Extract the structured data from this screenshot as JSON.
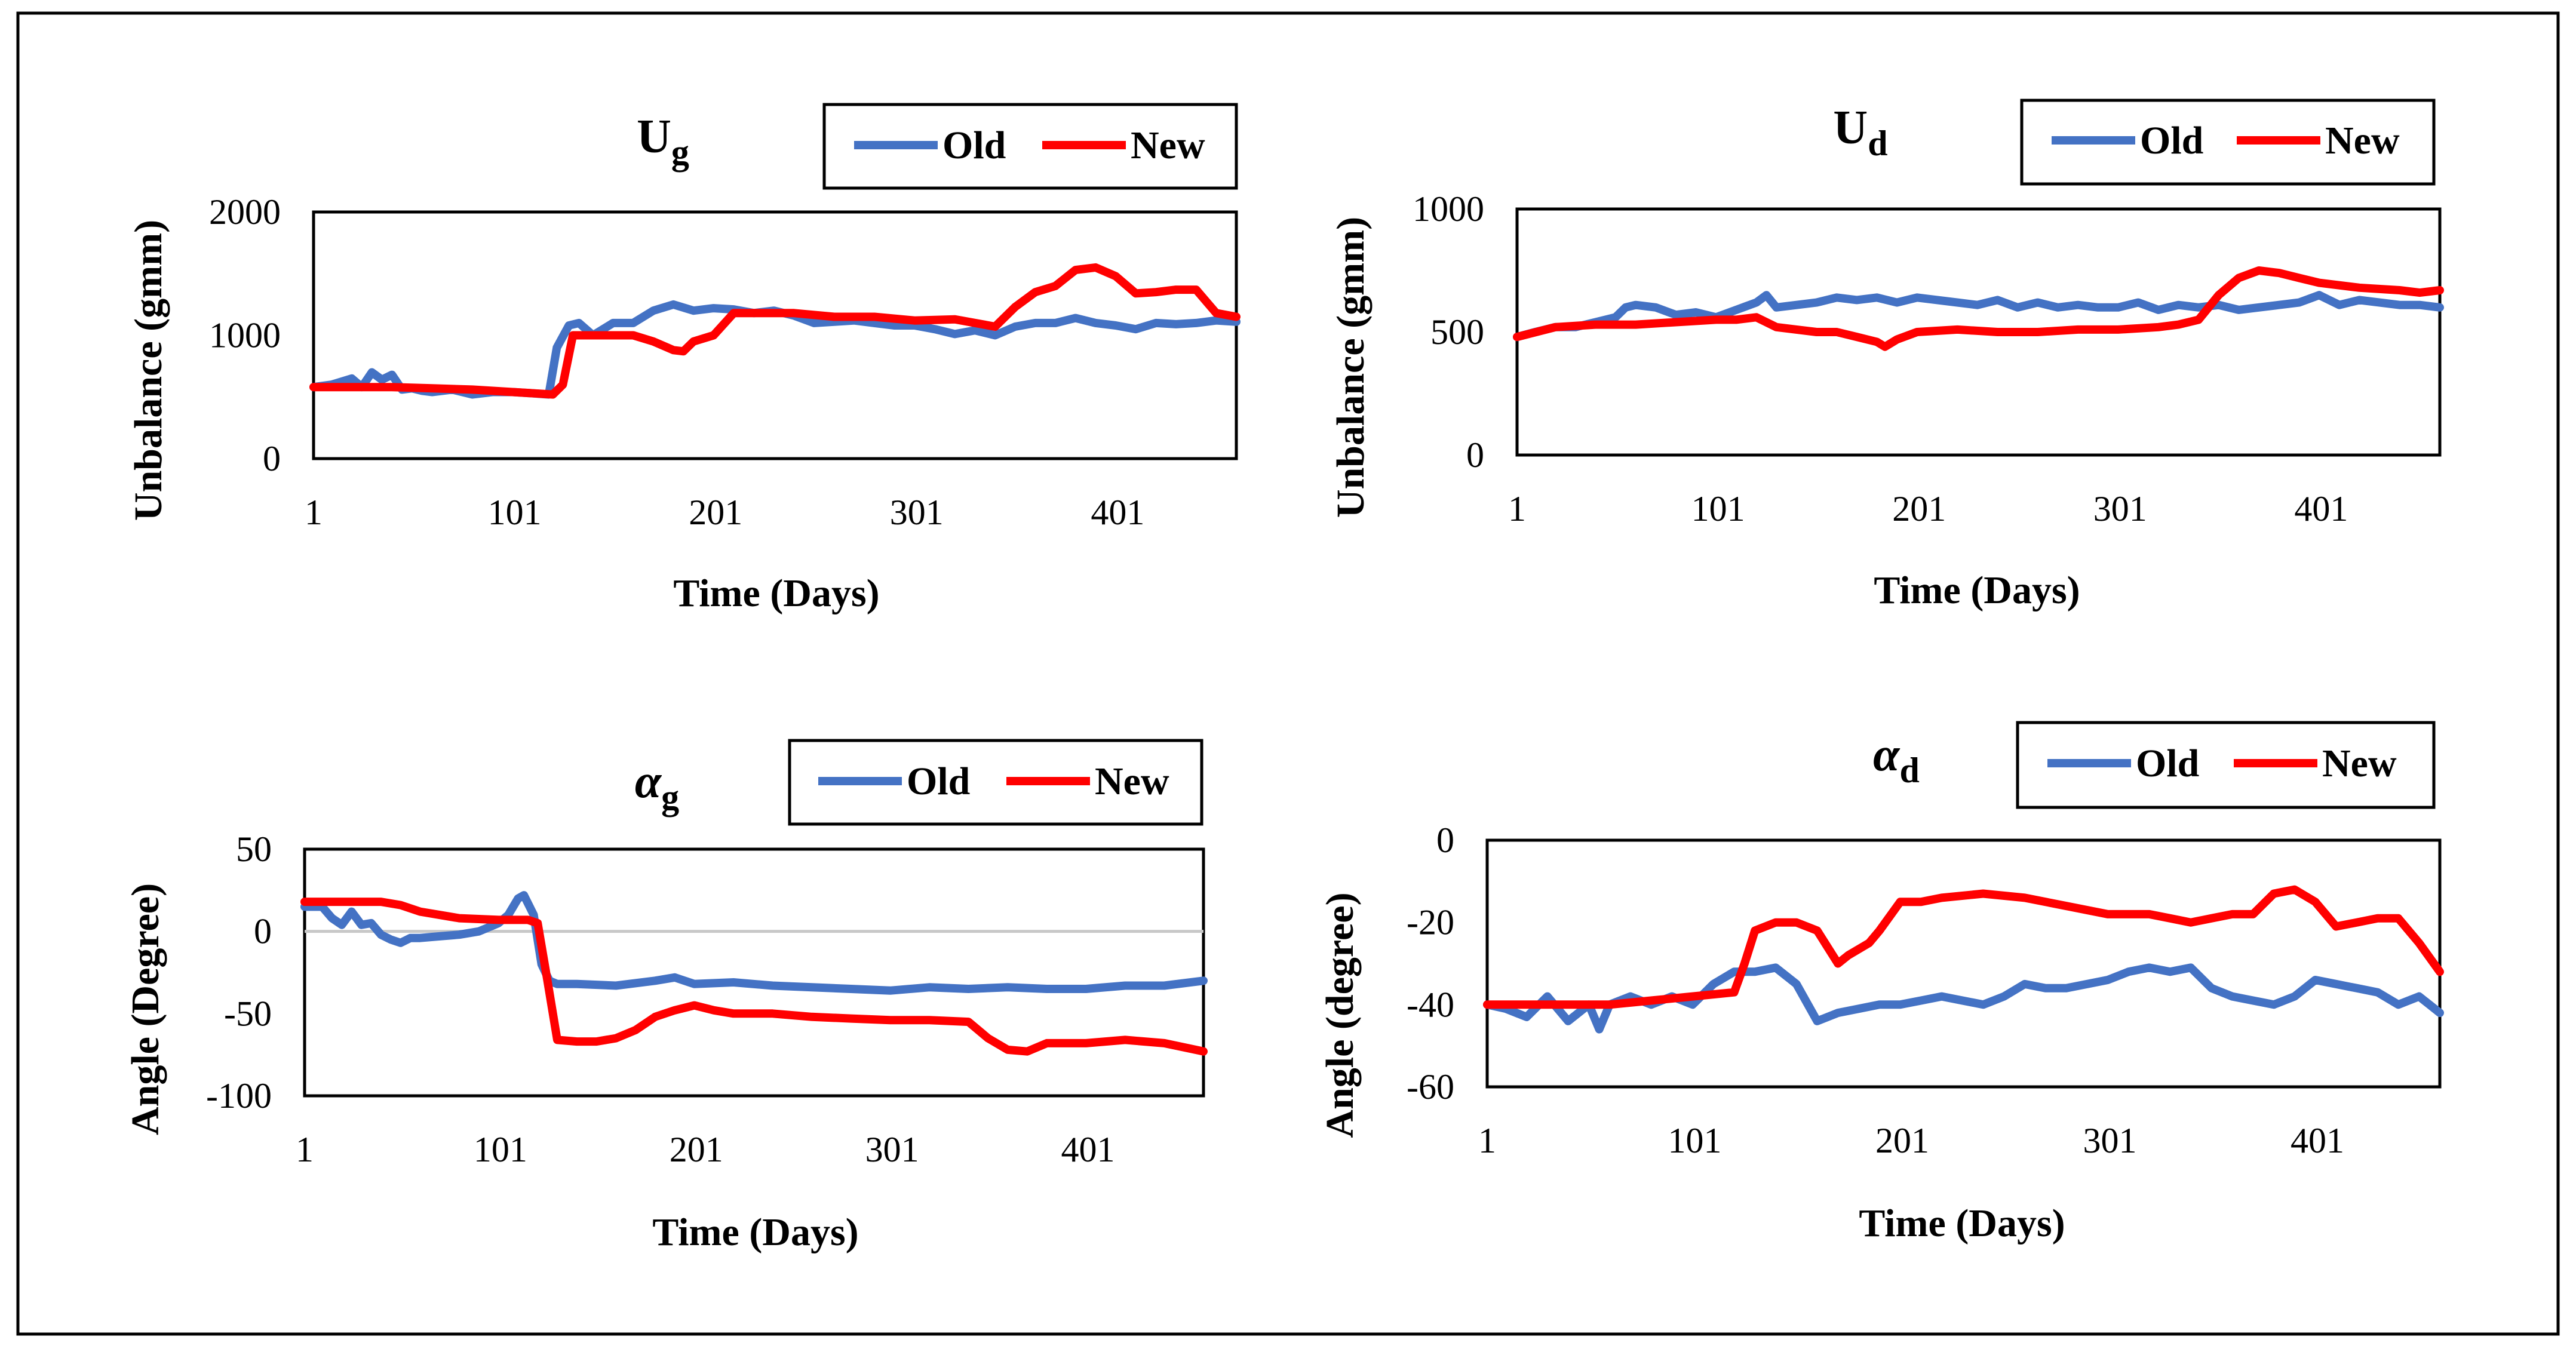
{
  "colors": {
    "old": "#4472C4",
    "new": "#FF0000",
    "zero_line": "#C8C8C8",
    "border": "#000000"
  },
  "legend": {
    "old_label": "Old",
    "new_label": "New"
  },
  "chart_data": [
    {
      "id": "ug",
      "type": "line",
      "title": "U",
      "title_sub": "g",
      "title_italic": false,
      "xlabel": "Time (Days)",
      "ylabel": "Unbalance (gmm)",
      "x_ticks": [
        1,
        101,
        201,
        301,
        401
      ],
      "xlim": [
        1,
        460
      ],
      "ylim": [
        0,
        2000
      ],
      "y_ticks": [
        0,
        1000,
        2000
      ],
      "zero_line": false,
      "series": [
        {
          "name": "Old",
          "x": [
            1,
            10,
            20,
            25,
            30,
            35,
            40,
            45,
            50,
            55,
            60,
            70,
            80,
            90,
            100,
            110,
            118,
            122,
            128,
            133,
            140,
            150,
            160,
            170,
            180,
            190,
            200,
            210,
            220,
            230,
            240,
            250,
            260,
            270,
            280,
            290,
            300,
            310,
            320,
            330,
            340,
            350,
            360,
            370,
            380,
            390,
            400,
            410,
            420,
            430,
            440,
            450,
            460
          ],
          "values": [
            580,
            600,
            650,
            580,
            700,
            640,
            680,
            560,
            570,
            550,
            540,
            560,
            520,
            540,
            540,
            530,
            520,
            900,
            1080,
            1100,
            1000,
            1100,
            1100,
            1200,
            1250,
            1200,
            1220,
            1210,
            1180,
            1200,
            1160,
            1100,
            1110,
            1120,
            1100,
            1080,
            1080,
            1050,
            1010,
            1040,
            1000,
            1070,
            1100,
            1100,
            1140,
            1100,
            1080,
            1050,
            1100,
            1090,
            1100,
            1120,
            1110
          ]
        },
        {
          "name": "New",
          "x": [
            1,
            20,
            40,
            60,
            80,
            100,
            120,
            125,
            130,
            140,
            150,
            160,
            170,
            180,
            185,
            190,
            200,
            210,
            220,
            240,
            260,
            280,
            300,
            320,
            340,
            350,
            360,
            370,
            380,
            390,
            400,
            410,
            420,
            430,
            440,
            450,
            460
          ],
          "values": [
            580,
            580,
            580,
            570,
            560,
            540,
            520,
            600,
            1000,
            1000,
            1000,
            1000,
            950,
            880,
            870,
            950,
            1000,
            1180,
            1180,
            1180,
            1150,
            1150,
            1120,
            1130,
            1070,
            1230,
            1350,
            1400,
            1530,
            1550,
            1480,
            1340,
            1350,
            1370,
            1370,
            1180,
            1150
          ]
        }
      ]
    },
    {
      "id": "ud",
      "type": "line",
      "title": "U",
      "title_sub": "d",
      "title_italic": false,
      "xlabel": "Time (Days)",
      "ylabel": "Unbalance (gmm)",
      "x_ticks": [
        1,
        101,
        201,
        301,
        401
      ],
      "xlim": [
        1,
        460
      ],
      "ylim": [
        0,
        1000
      ],
      "y_ticks": [
        0,
        500,
        1000
      ],
      "zero_line": false,
      "series": [
        {
          "name": "Old",
          "x": [
            1,
            10,
            20,
            30,
            40,
            50,
            55,
            60,
            70,
            80,
            90,
            100,
            110,
            120,
            125,
            130,
            140,
            150,
            160,
            170,
            180,
            190,
            200,
            210,
            220,
            230,
            240,
            250,
            260,
            270,
            280,
            290,
            300,
            310,
            320,
            330,
            340,
            350,
            360,
            370,
            380,
            390,
            400,
            410,
            420,
            430,
            440,
            450,
            460
          ],
          "values": [
            480,
            500,
            520,
            520,
            540,
            560,
            600,
            610,
            600,
            570,
            580,
            560,
            590,
            620,
            650,
            600,
            610,
            620,
            640,
            630,
            640,
            620,
            640,
            630,
            620,
            610,
            630,
            600,
            620,
            600,
            610,
            600,
            600,
            620,
            590,
            610,
            600,
            610,
            590,
            600,
            610,
            620,
            650,
            610,
            630,
            620,
            610,
            610,
            600
          ]
        },
        {
          "name": "New",
          "x": [
            1,
            20,
            40,
            60,
            80,
            100,
            110,
            120,
            130,
            140,
            150,
            160,
            170,
            180,
            184,
            190,
            200,
            220,
            240,
            260,
            280,
            300,
            320,
            330,
            340,
            350,
            360,
            370,
            380,
            390,
            400,
            420,
            440,
            450,
            460
          ],
          "values": [
            480,
            520,
            530,
            530,
            540,
            550,
            550,
            560,
            520,
            510,
            500,
            500,
            480,
            460,
            440,
            470,
            500,
            510,
            500,
            500,
            510,
            510,
            520,
            530,
            550,
            650,
            720,
            750,
            740,
            720,
            700,
            680,
            670,
            660,
            670
          ]
        }
      ]
    },
    {
      "id": "ag",
      "type": "line",
      "title": "α",
      "title_sub": "g",
      "title_italic": true,
      "xlabel": "Time (Days)",
      "ylabel": "Angle (Degree)",
      "x_ticks": [
        1,
        101,
        201,
        301,
        401
      ],
      "xlim": [
        1,
        460
      ],
      "ylim": [
        -100,
        50
      ],
      "y_ticks": [
        -100,
        -50,
        0,
        50
      ],
      "zero_line": true,
      "series": [
        {
          "name": "Old",
          "x": [
            1,
            10,
            15,
            20,
            25,
            30,
            35,
            40,
            45,
            50,
            55,
            60,
            70,
            80,
            90,
            100,
            105,
            110,
            113,
            118,
            122,
            126,
            130,
            140,
            160,
            180,
            190,
            200,
            220,
            240,
            260,
            280,
            300,
            320,
            340,
            360,
            380,
            400,
            420,
            440,
            460
          ],
          "values": [
            15,
            15,
            8,
            4,
            12,
            4,
            5,
            -2,
            -5,
            -7,
            -4,
            -4,
            -3,
            -2,
            0,
            5,
            10,
            20,
            22,
            10,
            -20,
            -30,
            -32,
            -32,
            -33,
            -30,
            -28,
            -32,
            -31,
            -33,
            -34,
            -35,
            -36,
            -34,
            -35,
            -34,
            -35,
            -35,
            -33,
            -33,
            -30
          ]
        },
        {
          "name": "New",
          "x": [
            1,
            20,
            30,
            40,
            50,
            60,
            80,
            100,
            110,
            115,
            120,
            125,
            130,
            140,
            150,
            160,
            170,
            180,
            190,
            200,
            210,
            220,
            240,
            260,
            280,
            300,
            320,
            340,
            350,
            360,
            370,
            380,
            400,
            420,
            440,
            460
          ],
          "values": [
            18,
            18,
            18,
            18,
            16,
            12,
            8,
            7,
            7,
            7,
            5,
            -30,
            -66,
            -67,
            -67,
            -65,
            -60,
            -52,
            -48,
            -45,
            -48,
            -50,
            -50,
            -52,
            -53,
            -54,
            -54,
            -55,
            -65,
            -72,
            -73,
            -68,
            -68,
            -66,
            -68,
            -73
          ]
        }
      ]
    },
    {
      "id": "ad",
      "type": "line",
      "title": "α",
      "title_sub": "d",
      "title_italic": true,
      "xlabel": "Time (Days)",
      "ylabel": "Angle (degree)",
      "x_ticks": [
        1,
        101,
        201,
        301,
        401
      ],
      "xlim": [
        1,
        460
      ],
      "ylim": [
        -60,
        0
      ],
      "y_ticks": [
        -60,
        -40,
        -20,
        0
      ],
      "zero_line": false,
      "series": [
        {
          "name": "Old",
          "x": [
            1,
            10,
            20,
            30,
            40,
            50,
            55,
            60,
            70,
            80,
            90,
            100,
            110,
            120,
            130,
            140,
            150,
            160,
            170,
            180,
            190,
            200,
            210,
            220,
            230,
            240,
            250,
            260,
            270,
            280,
            290,
            300,
            310,
            320,
            330,
            340,
            350,
            360,
            370,
            380,
            390,
            400,
            410,
            420,
            430,
            440,
            450,
            460
          ],
          "values": [
            -40,
            -41,
            -43,
            -38,
            -44,
            -40,
            -46,
            -40,
            -38,
            -40,
            -38,
            -40,
            -35,
            -32,
            -32,
            -31,
            -35,
            -44,
            -42,
            -41,
            -40,
            -40,
            -39,
            -38,
            -39,
            -40,
            -38,
            -35,
            -36,
            -36,
            -35,
            -34,
            -32,
            -31,
            -32,
            -31,
            -36,
            -38,
            -39,
            -40,
            -38,
            -34,
            -35,
            -36,
            -37,
            -40,
            -38,
            -42
          ]
        },
        {
          "name": "New",
          "x": [
            1,
            20,
            40,
            60,
            80,
            100,
            120,
            125,
            130,
            140,
            150,
            160,
            170,
            175,
            185,
            190,
            200,
            210,
            220,
            240,
            260,
            280,
            300,
            320,
            330,
            340,
            350,
            360,
            370,
            380,
            390,
            400,
            410,
            420,
            430,
            440,
            450,
            460
          ],
          "values": [
            -40,
            -40,
            -40,
            -40,
            -39,
            -38,
            -37,
            -30,
            -22,
            -20,
            -20,
            -22,
            -30,
            -28,
            -25,
            -22,
            -15,
            -15,
            -14,
            -13,
            -14,
            -16,
            -18,
            -18,
            -19,
            -20,
            -19,
            -18,
            -18,
            -13,
            -12,
            -15,
            -21,
            -20,
            -19,
            -19,
            -25,
            -32
          ]
        }
      ]
    }
  ]
}
